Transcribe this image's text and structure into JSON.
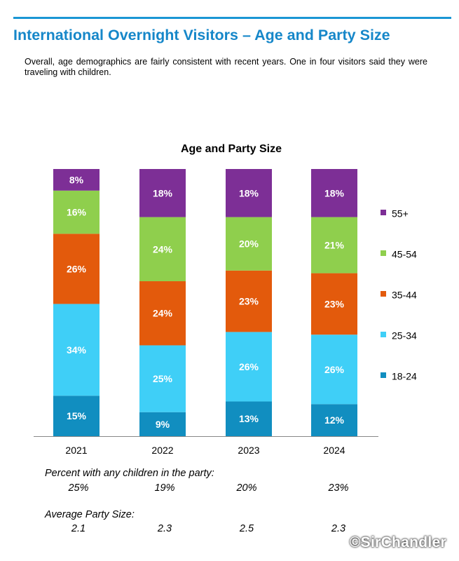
{
  "header": {
    "title": "International Overnight Visitors – Age and Party Size",
    "intro": "Overall, age demographics are fairly consistent with recent years. One in four visitors said they were traveling with children."
  },
  "colors": {
    "rule": "#1a96d4",
    "title": "#1687c9",
    "18-24": "#118ec0",
    "25-34": "#3fcff7",
    "35-44": "#e35a0c",
    "45-54": "#8fcf4d",
    "55+": "#7d2f96"
  },
  "chart_data": {
    "type": "bar",
    "stacked": true,
    "title": "Age and Party Size",
    "categories": [
      "2021",
      "2022",
      "2023",
      "2024"
    ],
    "series": [
      {
        "name": "18-24",
        "values": [
          15,
          9,
          13,
          12
        ],
        "labels": [
          "15%",
          "9%",
          "13%",
          "12%"
        ],
        "color": "#118ec0"
      },
      {
        "name": "25-34",
        "values": [
          34,
          25,
          26,
          26
        ],
        "labels": [
          "34%",
          "25%",
          "26%",
          "26%"
        ],
        "color": "#3fcff7"
      },
      {
        "name": "35-44",
        "values": [
          26,
          24,
          23,
          23
        ],
        "labels": [
          "26%",
          "24%",
          "23%",
          "23%"
        ],
        "color": "#e35a0c"
      },
      {
        "name": "45-54",
        "values": [
          16,
          24,
          20,
          21
        ],
        "labels": [
          "16%",
          "24%",
          "20%",
          "21%"
        ],
        "color": "#8fcf4d"
      },
      {
        "name": "55+",
        "values": [
          8,
          18,
          18,
          18
        ],
        "labels": [
          "8%",
          "18%",
          "18%",
          "18%"
        ],
        "color": "#7d2f96"
      }
    ],
    "legend_order": [
      "55+",
      "45-54",
      "35-44",
      "25-34",
      "18-24"
    ],
    "legend_position": "right",
    "grid": false
  },
  "children": {
    "label": "Percent with any children in the party:",
    "values": [
      "25%",
      "19%",
      "20%",
      "23%"
    ]
  },
  "party_size": {
    "label": "Average Party Size:",
    "values": [
      "2.1",
      "2.3",
      "2.5",
      "2.3"
    ]
  },
  "watermark": "©SirChandler"
}
